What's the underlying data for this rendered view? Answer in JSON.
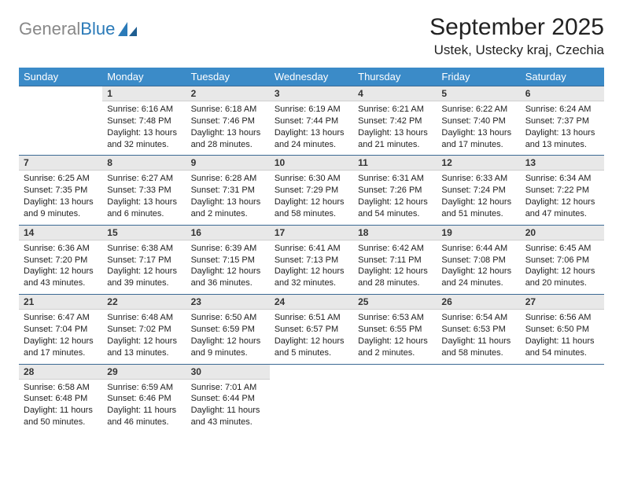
{
  "logo": {
    "part1": "General",
    "part2": "Blue"
  },
  "title": "September 2025",
  "location": "Ustek, Ustecky kraj, Czechia",
  "colors": {
    "header_bg": "#3b8bc8",
    "header_text": "#ffffff",
    "daynum_bg": "#e8e8e8",
    "rule": "#3b6a94",
    "text": "#222222",
    "logo_gray": "#888888",
    "logo_blue": "#2a7ab8",
    "page_bg": "#ffffff"
  },
  "weekdays": [
    "Sunday",
    "Monday",
    "Tuesday",
    "Wednesday",
    "Thursday",
    "Friday",
    "Saturday"
  ],
  "weeks": [
    [
      {
        "n": "",
        "sunrise": "",
        "sunset": "",
        "daylight": ""
      },
      {
        "n": "1",
        "sunrise": "Sunrise: 6:16 AM",
        "sunset": "Sunset: 7:48 PM",
        "daylight": "Daylight: 13 hours and 32 minutes."
      },
      {
        "n": "2",
        "sunrise": "Sunrise: 6:18 AM",
        "sunset": "Sunset: 7:46 PM",
        "daylight": "Daylight: 13 hours and 28 minutes."
      },
      {
        "n": "3",
        "sunrise": "Sunrise: 6:19 AM",
        "sunset": "Sunset: 7:44 PM",
        "daylight": "Daylight: 13 hours and 24 minutes."
      },
      {
        "n": "4",
        "sunrise": "Sunrise: 6:21 AM",
        "sunset": "Sunset: 7:42 PM",
        "daylight": "Daylight: 13 hours and 21 minutes."
      },
      {
        "n": "5",
        "sunrise": "Sunrise: 6:22 AM",
        "sunset": "Sunset: 7:40 PM",
        "daylight": "Daylight: 13 hours and 17 minutes."
      },
      {
        "n": "6",
        "sunrise": "Sunrise: 6:24 AM",
        "sunset": "Sunset: 7:37 PM",
        "daylight": "Daylight: 13 hours and 13 minutes."
      }
    ],
    [
      {
        "n": "7",
        "sunrise": "Sunrise: 6:25 AM",
        "sunset": "Sunset: 7:35 PM",
        "daylight": "Daylight: 13 hours and 9 minutes."
      },
      {
        "n": "8",
        "sunrise": "Sunrise: 6:27 AM",
        "sunset": "Sunset: 7:33 PM",
        "daylight": "Daylight: 13 hours and 6 minutes."
      },
      {
        "n": "9",
        "sunrise": "Sunrise: 6:28 AM",
        "sunset": "Sunset: 7:31 PM",
        "daylight": "Daylight: 13 hours and 2 minutes."
      },
      {
        "n": "10",
        "sunrise": "Sunrise: 6:30 AM",
        "sunset": "Sunset: 7:29 PM",
        "daylight": "Daylight: 12 hours and 58 minutes."
      },
      {
        "n": "11",
        "sunrise": "Sunrise: 6:31 AM",
        "sunset": "Sunset: 7:26 PM",
        "daylight": "Daylight: 12 hours and 54 minutes."
      },
      {
        "n": "12",
        "sunrise": "Sunrise: 6:33 AM",
        "sunset": "Sunset: 7:24 PM",
        "daylight": "Daylight: 12 hours and 51 minutes."
      },
      {
        "n": "13",
        "sunrise": "Sunrise: 6:34 AM",
        "sunset": "Sunset: 7:22 PM",
        "daylight": "Daylight: 12 hours and 47 minutes."
      }
    ],
    [
      {
        "n": "14",
        "sunrise": "Sunrise: 6:36 AM",
        "sunset": "Sunset: 7:20 PM",
        "daylight": "Daylight: 12 hours and 43 minutes."
      },
      {
        "n": "15",
        "sunrise": "Sunrise: 6:38 AM",
        "sunset": "Sunset: 7:17 PM",
        "daylight": "Daylight: 12 hours and 39 minutes."
      },
      {
        "n": "16",
        "sunrise": "Sunrise: 6:39 AM",
        "sunset": "Sunset: 7:15 PM",
        "daylight": "Daylight: 12 hours and 36 minutes."
      },
      {
        "n": "17",
        "sunrise": "Sunrise: 6:41 AM",
        "sunset": "Sunset: 7:13 PM",
        "daylight": "Daylight: 12 hours and 32 minutes."
      },
      {
        "n": "18",
        "sunrise": "Sunrise: 6:42 AM",
        "sunset": "Sunset: 7:11 PM",
        "daylight": "Daylight: 12 hours and 28 minutes."
      },
      {
        "n": "19",
        "sunrise": "Sunrise: 6:44 AM",
        "sunset": "Sunset: 7:08 PM",
        "daylight": "Daylight: 12 hours and 24 minutes."
      },
      {
        "n": "20",
        "sunrise": "Sunrise: 6:45 AM",
        "sunset": "Sunset: 7:06 PM",
        "daylight": "Daylight: 12 hours and 20 minutes."
      }
    ],
    [
      {
        "n": "21",
        "sunrise": "Sunrise: 6:47 AM",
        "sunset": "Sunset: 7:04 PM",
        "daylight": "Daylight: 12 hours and 17 minutes."
      },
      {
        "n": "22",
        "sunrise": "Sunrise: 6:48 AM",
        "sunset": "Sunset: 7:02 PM",
        "daylight": "Daylight: 12 hours and 13 minutes."
      },
      {
        "n": "23",
        "sunrise": "Sunrise: 6:50 AM",
        "sunset": "Sunset: 6:59 PM",
        "daylight": "Daylight: 12 hours and 9 minutes."
      },
      {
        "n": "24",
        "sunrise": "Sunrise: 6:51 AM",
        "sunset": "Sunset: 6:57 PM",
        "daylight": "Daylight: 12 hours and 5 minutes."
      },
      {
        "n": "25",
        "sunrise": "Sunrise: 6:53 AM",
        "sunset": "Sunset: 6:55 PM",
        "daylight": "Daylight: 12 hours and 2 minutes."
      },
      {
        "n": "26",
        "sunrise": "Sunrise: 6:54 AM",
        "sunset": "Sunset: 6:53 PM",
        "daylight": "Daylight: 11 hours and 58 minutes."
      },
      {
        "n": "27",
        "sunrise": "Sunrise: 6:56 AM",
        "sunset": "Sunset: 6:50 PM",
        "daylight": "Daylight: 11 hours and 54 minutes."
      }
    ],
    [
      {
        "n": "28",
        "sunrise": "Sunrise: 6:58 AM",
        "sunset": "Sunset: 6:48 PM",
        "daylight": "Daylight: 11 hours and 50 minutes."
      },
      {
        "n": "29",
        "sunrise": "Sunrise: 6:59 AM",
        "sunset": "Sunset: 6:46 PM",
        "daylight": "Daylight: 11 hours and 46 minutes."
      },
      {
        "n": "30",
        "sunrise": "Sunrise: 7:01 AM",
        "sunset": "Sunset: 6:44 PM",
        "daylight": "Daylight: 11 hours and 43 minutes."
      },
      {
        "n": "",
        "sunrise": "",
        "sunset": "",
        "daylight": ""
      },
      {
        "n": "",
        "sunrise": "",
        "sunset": "",
        "daylight": ""
      },
      {
        "n": "",
        "sunrise": "",
        "sunset": "",
        "daylight": ""
      },
      {
        "n": "",
        "sunrise": "",
        "sunset": "",
        "daylight": ""
      }
    ]
  ]
}
